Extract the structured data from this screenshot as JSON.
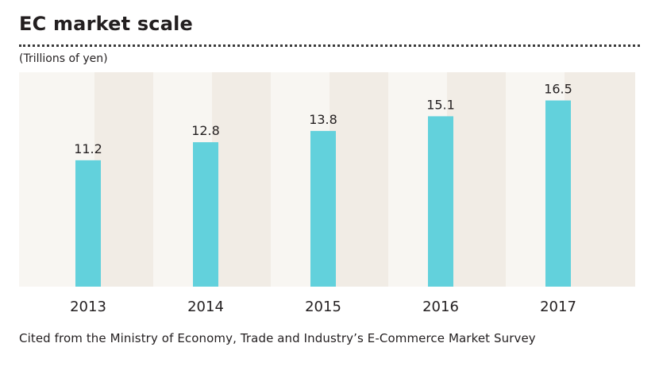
{
  "title": "EC market scale",
  "unit_label": "(Trillions of yen)",
  "source_note": "Cited from the Ministry of Economy, Trade and Industry’s E-Commerce Market Survey",
  "colors": {
    "bar": "#62d1dc",
    "band_light": "#f8f6f2",
    "band_dark": "#f1ece5",
    "text": "#231f20"
  },
  "chart_data": {
    "type": "bar",
    "title": "EC market scale",
    "ylabel": "(Trillions of yen)",
    "xlabel": "",
    "categories": [
      "2013",
      "2014",
      "2015",
      "2016",
      "2017"
    ],
    "values": [
      11.2,
      12.8,
      13.8,
      15.1,
      16.5
    ],
    "ylim": [
      0,
      19
    ],
    "grid": false,
    "data_labels": [
      "11.2",
      "12.8",
      "13.8",
      "15.1",
      "16.5"
    ]
  }
}
